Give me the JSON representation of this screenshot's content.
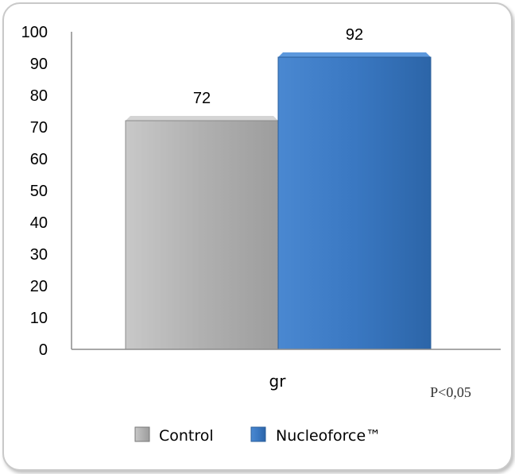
{
  "chart_data": {
    "type": "bar",
    "categories": [
      "gr"
    ],
    "series": [
      {
        "name": "Control",
        "values": [
          72
        ],
        "color": "#b3b3b3"
      },
      {
        "name": "Nucleoforce™",
        "values": [
          92
        ],
        "color": "#3a78c2"
      }
    ],
    "ylim": [
      0,
      100
    ],
    "yticks": [
      0,
      10,
      20,
      30,
      40,
      50,
      60,
      70,
      80,
      90,
      100
    ],
    "data_labels": [
      "72",
      "92"
    ],
    "annotation": "P<0,05",
    "legend_position": "bottom",
    "grid": false
  }
}
